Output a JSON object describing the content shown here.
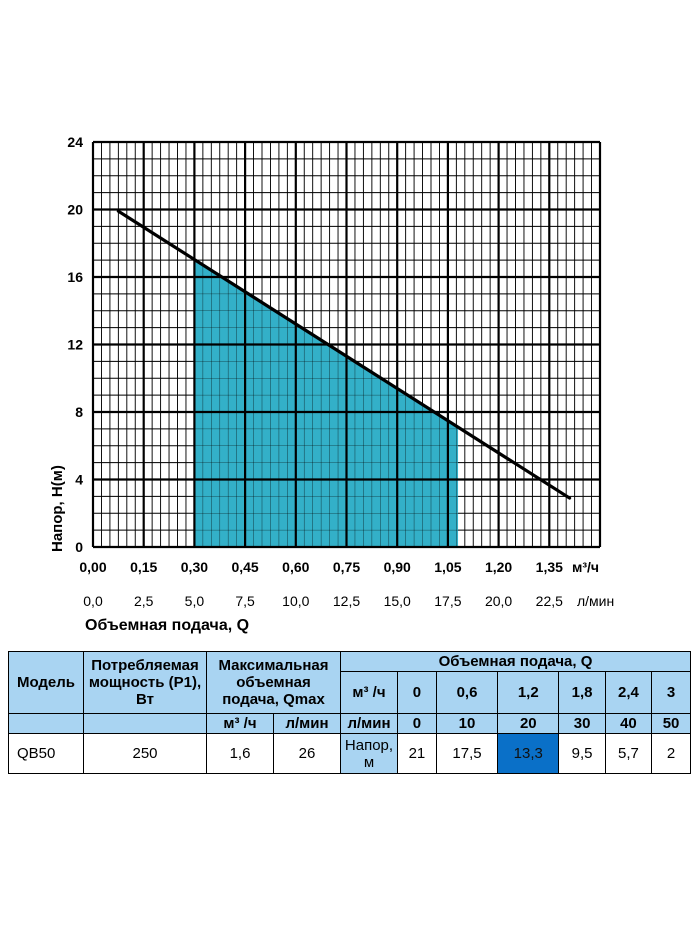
{
  "chart_data": {
    "type": "line",
    "ylabel": "Напор, Н(м)",
    "xlabel": "Объемная подача, Q",
    "x_unit_primary": "м³/ч",
    "x_unit_secondary": "л/мин",
    "x_ticks_primary": [
      "0,00",
      "0,15",
      "0,30",
      "0,45",
      "0,60",
      "0,75",
      "0,90",
      "1,05",
      "1,20",
      "1,35"
    ],
    "x_ticks_secondary": [
      "0,0",
      "2,5",
      "5,0",
      "7,5",
      "10,0",
      "12,5",
      "15,0",
      "17,5",
      "20,0",
      "22,5"
    ],
    "y_ticks": [
      "0",
      "4",
      "8",
      "12",
      "16",
      "20",
      "24"
    ],
    "xlim": [
      0,
      1.5
    ],
    "ylim": [
      0,
      24
    ],
    "grid": true,
    "series": [
      {
        "x": [
          0.075,
          1.41
        ],
        "y": [
          19.9,
          2.9
        ],
        "color": "#000000"
      }
    ],
    "shaded_region": {
      "x_from": 0.3,
      "x_to": 1.08,
      "color": "#33b0c8"
    }
  },
  "table": {
    "header": {
      "model": "Модель",
      "power": "Потребляемая мощность (P1), Вт",
      "max_flow": "Максимальная объемная подача, Qmax",
      "flow": "Объемная подача, Q",
      "unit_m3h": "м³ /ч",
      "unit_lmin": "л/мин",
      "flow_m3h_label": "м³ /ч",
      "flow_lmin_label": "л/мин",
      "flow_m3h_values": [
        "0",
        "0,6",
        "1,2",
        "1,8",
        "2,4",
        "3"
      ],
      "flow_lmin_values": [
        "0",
        "10",
        "20",
        "30",
        "40",
        "50"
      ]
    },
    "row": {
      "model": "QB50",
      "power": "250",
      "qmax_m3h": "1,6",
      "qmax_lmin": "26",
      "head_label": "Напор, м",
      "head_values": [
        "21",
        "17,5",
        "13,3",
        "9,5",
        "5,7",
        "2"
      ]
    },
    "highlight_color": "#0a70c8",
    "header_color": "#a9d4f2"
  }
}
